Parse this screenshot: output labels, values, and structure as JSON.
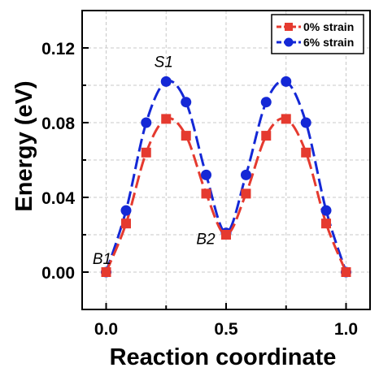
{
  "chart_data": {
    "type": "line",
    "xlabel": "Reaction coordinate",
    "ylabel": "Energy (eV)",
    "xlim": [
      -0.1,
      1.1
    ],
    "ylim": [
      -0.02,
      0.14
    ],
    "xticks": [
      0.0,
      0.5,
      1.0
    ],
    "xtick_labels": [
      "0.0",
      "0.5",
      "1.0"
    ],
    "yticks": [
      0.0,
      0.04,
      0.08,
      0.12
    ],
    "ytick_labels": [
      "0.00",
      "0.04",
      "0.08",
      "0.12"
    ],
    "grid": true,
    "legend_position": "top-right",
    "series": [
      {
        "name": "0% strain",
        "color": "#e53a2f",
        "marker": "square",
        "line_style": "dashed",
        "x": [
          0.0,
          0.083,
          0.167,
          0.25,
          0.333,
          0.417,
          0.5,
          0.583,
          0.667,
          0.75,
          0.833,
          0.917,
          1.0
        ],
        "y": [
          0.0,
          0.026,
          0.064,
          0.082,
          0.073,
          0.042,
          0.02,
          0.042,
          0.073,
          0.082,
          0.064,
          0.026,
          0.0
        ]
      },
      {
        "name": "6% strain",
        "color": "#1428d6",
        "marker": "circle",
        "line_style": "dashed",
        "x": [
          0.0,
          0.083,
          0.167,
          0.25,
          0.333,
          0.417,
          0.5,
          0.583,
          0.667,
          0.75,
          0.833,
          0.917,
          1.0
        ],
        "y": [
          0.0,
          0.033,
          0.08,
          0.102,
          0.091,
          0.052,
          0.021,
          0.052,
          0.091,
          0.102,
          0.08,
          0.033,
          0.0
        ]
      }
    ],
    "annotations": [
      {
        "text": "S1",
        "x": 0.25,
        "y": 0.102
      },
      {
        "text": "B2",
        "x": 0.5,
        "y": 0.021
      },
      {
        "text": "B1",
        "x": 0.0,
        "y": 0.0
      }
    ]
  }
}
